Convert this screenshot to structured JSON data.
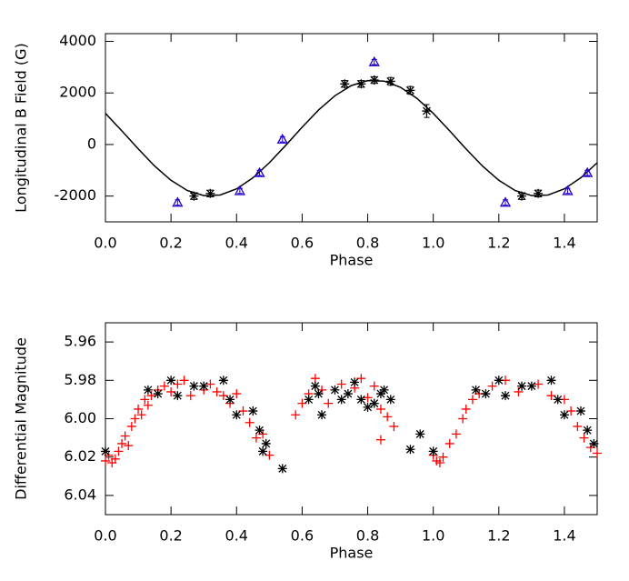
{
  "chart_data": [
    {
      "type": "scatter",
      "ylabel": "Longitudinal B Field (G)",
      "xlabel": "Phase",
      "xlim": [
        0,
        1.5
      ],
      "ylim": [
        -3000,
        4300
      ],
      "xticks": [
        {
          "value": 0,
          "label": "0.0"
        },
        {
          "value": 0.2,
          "label": "0.2"
        },
        {
          "value": 0.4,
          "label": "0.4"
        },
        {
          "value": 0.6,
          "label": "0.6"
        },
        {
          "value": 0.8,
          "label": "0.8"
        },
        {
          "value": 1,
          "label": "1.0"
        },
        {
          "value": 1.2,
          "label": "1.2"
        },
        {
          "value": 1.4,
          "label": "1.4"
        }
      ],
      "yticks": [
        -2000,
        0,
        2000,
        4000
      ],
      "series": [
        {
          "marker": "line",
          "color": "#000000",
          "x": [
            0,
            0.05,
            0.1,
            0.15,
            0.2,
            0.25,
            0.3,
            0.35,
            0.4,
            0.45,
            0.5,
            0.55,
            0.6,
            0.65,
            0.7,
            0.75,
            0.8,
            0.85,
            0.9,
            0.95,
            1,
            1.05,
            1.1,
            1.15,
            1.2,
            1.25,
            1.3,
            1.35,
            1.4,
            1.45,
            1.5
          ],
          "values": [
            1208,
            531,
            -171,
            -834,
            -1390,
            -1786,
            -1982,
            -1960,
            -1721,
            -1291,
            -708,
            -31,
            671,
            1334,
            1890,
            2286,
            2482,
            2460,
            2221,
            1791,
            1208,
            531,
            -171,
            -834,
            -1390,
            -1786,
            -1982,
            -1960,
            -1721,
            -1291,
            -708
          ]
        },
        {
          "marker": "asterisk",
          "color": "#000000",
          "x": [
            0.27,
            0.32,
            0.73,
            0.78,
            0.82,
            0.87,
            0.93,
            0.98,
            1.27,
            1.32
          ],
          "values": [
            -2000,
            -1900,
            2350,
            2350,
            2500,
            2450,
            2100,
            1300,
            -2000,
            -1900
          ],
          "errors": [
            130,
            130,
            130,
            130,
            130,
            150,
            150,
            250,
            130,
            130
          ]
        },
        {
          "marker": "triangle",
          "color": "#2200cc",
          "x": [
            0.22,
            0.41,
            0.47,
            0.54,
            0.82,
            1.22,
            1.41,
            1.47
          ],
          "values": [
            -2250,
            -1800,
            -1100,
            200,
            3200,
            -2250,
            -1800,
            -1100
          ],
          "errors": [
            100,
            100,
            100,
            100,
            100,
            100,
            100,
            100
          ]
        }
      ]
    },
    {
      "type": "scatter",
      "ylabel": "Differential Magnitude",
      "xlabel": "Phase",
      "xlim": [
        0,
        1.5
      ],
      "ylim": [
        6.05,
        5.95
      ],
      "xticks": [
        {
          "value": 0,
          "label": "0.0"
        },
        {
          "value": 0.2,
          "label": "0.2"
        },
        {
          "value": 0.4,
          "label": "0.4"
        },
        {
          "value": 0.6,
          "label": "0.6"
        },
        {
          "value": 0.8,
          "label": "0.8"
        },
        {
          "value": 1,
          "label": "1.0"
        },
        {
          "value": 1.2,
          "label": "1.2"
        },
        {
          "value": 1.4,
          "label": "1.4"
        }
      ],
      "yticks": [
        5.96,
        5.98,
        {
          "value": 6,
          "label": "6.00"
        },
        6.02,
        6.04
      ],
      "series": [
        {
          "marker": "plus",
          "color": "#ff0000",
          "x": [
            0,
            0.01,
            0.02,
            0.03,
            0.04,
            0.05,
            0.06,
            0.07,
            0.08,
            0.09,
            0.1,
            0.11,
            0.12,
            0.13,
            0.14,
            0.16,
            0.18,
            0.2,
            0.22,
            0.24,
            0.26,
            0.3,
            0.32,
            0.34,
            0.36,
            0.38,
            0.4,
            0.42,
            0.44,
            0.46,
            0.48,
            0.5,
            0.58,
            0.6,
            0.62,
            0.64,
            0.66,
            0.68,
            0.72,
            0.76,
            0.78,
            0.8,
            0.82,
            0.84,
            0.86,
            0.88,
            0.84,
            1,
            1.01,
            1.02,
            1.03,
            1.05,
            1.07,
            1.09,
            1.1,
            1.12,
            1.14,
            1.18,
            1.22,
            1.26,
            1.32,
            1.36,
            1.4,
            1.42,
            1.44,
            1.46,
            1.48,
            1.5
          ],
          "values": [
            6.022,
            6.019,
            6.023,
            6.021,
            6.017,
            6.013,
            6.009,
            6.014,
            6.004,
            6.0,
            5.995,
            5.998,
            5.99,
            5.993,
            5.988,
            5.985,
            5.983,
            5.986,
            5.982,
            5.98,
            5.988,
            5.985,
            5.982,
            5.986,
            5.988,
            5.992,
            5.987,
            5.996,
            6.002,
            6.01,
            6.008,
            6.019,
            5.998,
            5.992,
            5.987,
            5.979,
            5.985,
            5.992,
            5.982,
            5.984,
            5.979,
            5.989,
            5.983,
            5.995,
            5.999,
            6.004,
            6.011,
            6.019,
            6.022,
            6.023,
            6.02,
            6.013,
            6.008,
            6.0,
            5.995,
            5.99,
            5.987,
            5.983,
            5.98,
            5.986,
            5.982,
            5.988,
            5.99,
            5.996,
            6.004,
            6.01,
            6.015,
            6.018
          ]
        },
        {
          "marker": "asterisk",
          "color": "#000000",
          "x": [
            0,
            0.13,
            0.16,
            0.2,
            0.22,
            0.27,
            0.3,
            0.36,
            0.38,
            0.4,
            0.45,
            0.47,
            0.49,
            0.48,
            0.54,
            0.62,
            0.64,
            0.65,
            0.66,
            0.7,
            0.72,
            0.74,
            0.76,
            0.78,
            0.8,
            0.82,
            0.84,
            0.85,
            0.87,
            0.93,
            0.96,
            1,
            1.13,
            1.16,
            1.2,
            1.22,
            1.27,
            1.3,
            1.36,
            1.38,
            1.4,
            1.45,
            1.47,
            1.49
          ],
          "values": [
            6.017,
            5.985,
            5.987,
            5.98,
            5.988,
            5.983,
            5.983,
            5.98,
            5.99,
            5.998,
            5.996,
            6.006,
            6.013,
            6.017,
            6.026,
            5.99,
            5.983,
            5.987,
            5.998,
            5.985,
            5.99,
            5.987,
            5.981,
            5.99,
            5.994,
            5.992,
            5.987,
            5.985,
            5.99,
            6.016,
            6.008,
            6.017,
            5.985,
            5.987,
            5.98,
            5.988,
            5.983,
            5.983,
            5.98,
            5.99,
            5.998,
            5.996,
            6.006,
            6.013
          ]
        }
      ]
    }
  ]
}
